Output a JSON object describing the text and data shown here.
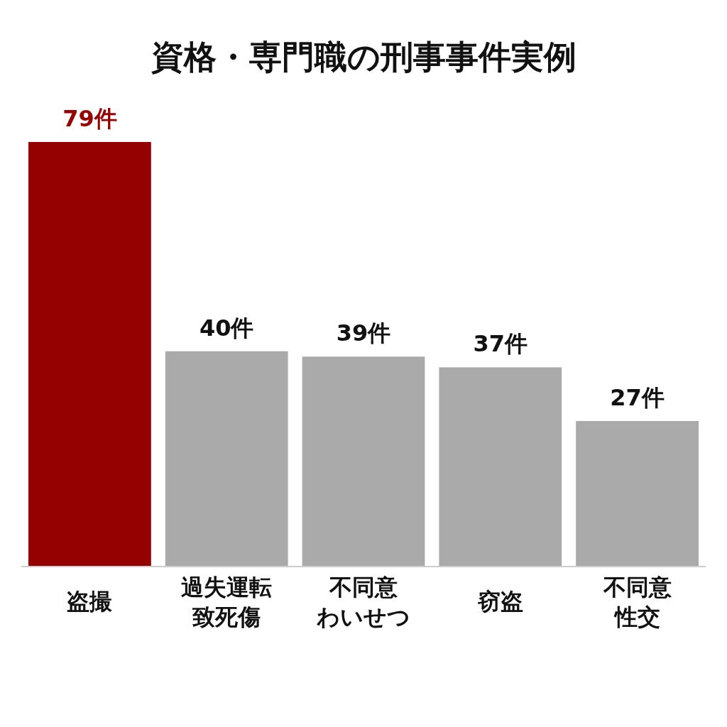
{
  "chart_data": {
    "type": "bar",
    "title": "資格・専門職の刑事事件実例",
    "categories": [
      "盗撮",
      "過失運転致死傷",
      "不同意わいせつ",
      "窃盗",
      "不同意性交"
    ],
    "values": [
      79,
      40,
      39,
      37,
      27
    ],
    "colors": [
      "#950000",
      "#aaaaaa",
      "#aaaaaa",
      "#aaaaaa",
      "#aaaaaa"
    ],
    "value_labels": [
      "79件",
      "40件",
      "39件",
      "37件",
      "27件"
    ]
  }
}
